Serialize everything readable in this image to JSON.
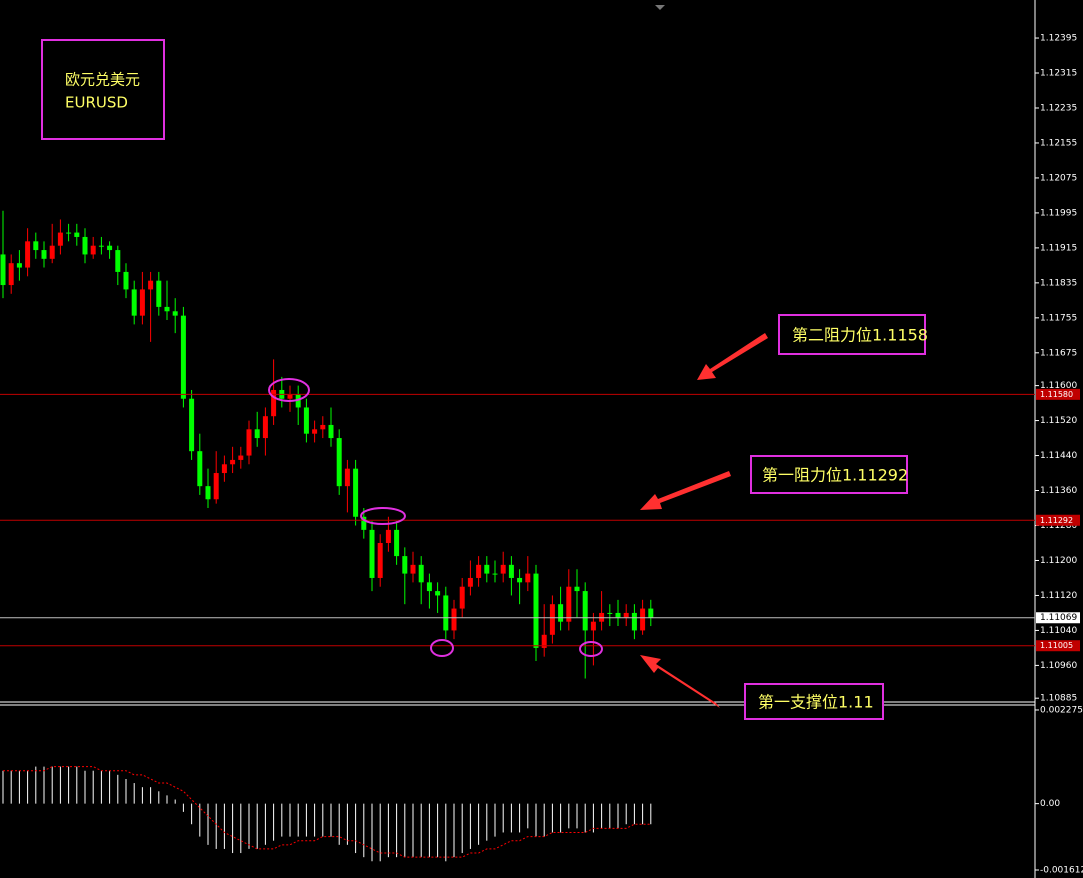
{
  "chart_data": [
    {
      "type": "candlestick",
      "title": "欧元兑美元",
      "subtitle": "EURUSD",
      "annotations": [
        "第二阻力位1.1158",
        "第一阻力位1.11292",
        "第一支撑位1.11"
      ],
      "up_color": "#ff0000",
      "down_color": "#00ff00",
      "open": [
        1.119,
        1.1183,
        1.1188,
        1.1187,
        1.1193,
        1.1191,
        1.1189,
        1.1192,
        1.1195,
        1.1195,
        1.1194,
        1.119,
        1.1192,
        1.1192,
        1.1191,
        1.1186,
        1.1182,
        1.1176,
        1.1182,
        1.1184,
        1.1178,
        1.1177,
        1.1176,
        1.1157,
        1.1145,
        1.1137,
        1.1134,
        1.114,
        1.1142,
        1.1143,
        1.1144,
        1.115,
        1.1148,
        1.1153,
        1.1159,
        1.1157,
        1.1158,
        1.1155,
        1.1149,
        1.115,
        1.1151,
        1.1148,
        1.1137,
        1.1141,
        1.113,
        1.1127,
        1.1116,
        1.1124,
        1.1127,
        1.1121,
        1.1117,
        1.1119,
        1.1115,
        1.1113,
        1.1112,
        1.1104,
        1.1109,
        1.1114,
        1.1116,
        1.1119,
        1.1117,
        1.1117,
        1.1119,
        1.1116,
        1.1115,
        1.1117,
        1.11,
        1.1103,
        1.111,
        1.1106,
        1.1114,
        1.1113,
        1.1104,
        1.1106,
        1.1108,
        1.1108,
        1.1107,
        1.1108,
        1.1104,
        1.1109
      ],
      "high": [
        1.12,
        1.119,
        1.1191,
        1.1196,
        1.1195,
        1.1193,
        1.1197,
        1.1198,
        1.1197,
        1.1197,
        1.1196,
        1.1194,
        1.1194,
        1.1193,
        1.1192,
        1.1188,
        1.1184,
        1.1186,
        1.1186,
        1.1186,
        1.1184,
        1.118,
        1.1178,
        1.1159,
        1.1149,
        1.1141,
        1.1145,
        1.1144,
        1.1146,
        1.1146,
        1.1152,
        1.1154,
        1.1155,
        1.1166,
        1.1162,
        1.116,
        1.116,
        1.1157,
        1.1152,
        1.1153,
        1.1155,
        1.115,
        1.1143,
        1.1143,
        1.1132,
        1.1129,
        1.1126,
        1.113,
        1.1129,
        1.1123,
        1.1122,
        1.1121,
        1.1117,
        1.1115,
        1.1114,
        1.1111,
        1.1116,
        1.112,
        1.1121,
        1.1121,
        1.112,
        1.1122,
        1.1121,
        1.1118,
        1.1121,
        1.1119,
        1.111,
        1.1112,
        1.1114,
        1.1118,
        1.1118,
        1.1115,
        1.1108,
        1.1113,
        1.111,
        1.1111,
        1.111,
        1.111,
        1.1111,
        1.1111
      ],
      "low": [
        1.118,
        1.1181,
        1.1184,
        1.1185,
        1.1189,
        1.1187,
        1.1188,
        1.119,
        1.1193,
        1.1192,
        1.1188,
        1.1189,
        1.119,
        1.1189,
        1.1183,
        1.118,
        1.1174,
        1.1174,
        1.117,
        1.1176,
        1.1175,
        1.1172,
        1.1155,
        1.1143,
        1.1135,
        1.1132,
        1.1133,
        1.1138,
        1.114,
        1.1141,
        1.1142,
        1.1146,
        1.1144,
        1.1151,
        1.1155,
        1.1154,
        1.1151,
        1.1147,
        1.1147,
        1.1148,
        1.1146,
        1.1135,
        1.1131,
        1.1128,
        1.1125,
        1.1113,
        1.1114,
        1.1122,
        1.1119,
        1.111,
        1.1115,
        1.111,
        1.1109,
        1.1108,
        1.1102,
        1.1102,
        1.1107,
        1.1112,
        1.1114,
        1.1115,
        1.1115,
        1.1115,
        1.1112,
        1.111,
        1.1113,
        1.1097,
        1.1098,
        1.1101,
        1.1104,
        1.1104,
        1.1107,
        1.1093,
        1.1096,
        1.1104,
        1.1105,
        1.1105,
        1.1105,
        1.1102,
        1.1103,
        1.1105
      ],
      "close": [
        1.1183,
        1.1188,
        1.1187,
        1.1193,
        1.1191,
        1.1189,
        1.1192,
        1.1195,
        1.1195,
        1.1194,
        1.119,
        1.1192,
        1.1192,
        1.1191,
        1.1186,
        1.1182,
        1.1176,
        1.1182,
        1.1184,
        1.1178,
        1.1177,
        1.1176,
        1.1157,
        1.1145,
        1.1137,
        1.1134,
        1.114,
        1.1142,
        1.1143,
        1.1144,
        1.115,
        1.1148,
        1.1153,
        1.1159,
        1.1157,
        1.1158,
        1.1155,
        1.1149,
        1.115,
        1.1151,
        1.1148,
        1.1137,
        1.1141,
        1.113,
        1.1127,
        1.1116,
        1.1124,
        1.1127,
        1.1121,
        1.1117,
        1.1119,
        1.1115,
        1.1113,
        1.1112,
        1.1104,
        1.1109,
        1.1114,
        1.1116,
        1.1119,
        1.1117,
        1.1117,
        1.1119,
        1.1116,
        1.1115,
        1.1117,
        1.11,
        1.1103,
        1.111,
        1.1106,
        1.1114,
        1.1113,
        1.1104,
        1.1106,
        1.1108,
        1.1108,
        1.1107,
        1.1108,
        1.1104,
        1.1109,
        1.11069
      ],
      "ylim": [
        1.10874,
        1.12482
      ],
      "yticks": [
        1.12395,
        1.12315,
        1.12235,
        1.12155,
        1.12075,
        1.11995,
        1.11915,
        1.11835,
        1.11755,
        1.11675,
        {
          "value": 1.116,
          "label": "1.11600"
        },
        {
          "value": 1.1152,
          "label": "1.11520"
        },
        {
          "value": 1.1144,
          "label": "1.11440"
        },
        {
          "value": 1.1136,
          "label": "1.11360"
        },
        {
          "value": 1.1128,
          "label": "1.11280"
        },
        {
          "value": 1.112,
          "label": "1.11200"
        },
        {
          "value": 1.1112,
          "label": "1.11120"
        },
        {
          "value": 1.1104,
          "label": "1.11040"
        },
        {
          "value": 1.1096,
          "label": "1.10960"
        },
        1.10885
      ],
      "levels": [
        {
          "value": 1.1158,
          "label": "1.11580"
        },
        1.11292,
        {
          "value": 1.11005,
          "label": "1.11005"
        }
      ],
      "level_color": "#c00000",
      "last_price": 1.11069,
      "last_price_color": "#c0c0c0"
    },
    {
      "type": "macd",
      "histogram": {
        "color": "#ffffff",
        "values": [
          0.0008,
          0.0008,
          0.0008,
          0.0008,
          0.0009,
          0.0009,
          0.0009,
          0.0009,
          0.0009,
          0.0009,
          0.0008,
          0.0008,
          0.0008,
          0.0008,
          0.0007,
          0.0006,
          0.0005,
          0.0004,
          0.0004,
          0.0003,
          0.0002,
          0.0001,
          -0.0002,
          -0.0005,
          -0.0008,
          -0.001,
          -0.0011,
          -0.0011,
          -0.0012,
          -0.0012,
          -0.0011,
          -0.0011,
          -0.001,
          -0.0009,
          -0.0008,
          -0.0008,
          -0.0008,
          -0.0008,
          -0.0008,
          -0.0008,
          -0.0008,
          -0.001,
          -0.001,
          -0.0012,
          -0.0013,
          -0.0014,
          -0.0014,
          -0.0013,
          -0.0013,
          -0.0013,
          -0.0013,
          -0.0013,
          -0.0013,
          -0.0013,
          -0.0014,
          -0.0013,
          -0.0012,
          -0.0011,
          -0.001,
          -0.0009,
          -0.0008,
          -0.0007,
          -0.0007,
          -0.0007,
          -0.0006,
          -0.0008,
          -0.0008,
          -0.0007,
          -0.0007,
          -0.0006,
          -0.0006,
          -0.0007,
          -0.0007,
          -0.0006,
          -0.0006,
          -0.0006,
          -0.0005,
          -0.0005,
          -0.0005,
          -0.0005
        ]
      },
      "signal": {
        "color": "#ff0000",
        "values": [
          0.0008,
          0.0008,
          0.0008,
          0.0008,
          0.0008,
          0.0008,
          0.0009,
          0.0009,
          0.0009,
          0.0009,
          0.0009,
          0.0009,
          0.0008,
          0.0008,
          0.0008,
          0.0008,
          0.0007,
          0.0007,
          0.0006,
          0.0005,
          0.0005,
          0.0004,
          0.0003,
          0.0001,
          -0.0001,
          -0.0003,
          -0.0005,
          -0.0007,
          -0.0008,
          -0.0009,
          -0.001,
          -0.0011,
          -0.0011,
          -0.0011,
          -0.001,
          -0.001,
          -0.0009,
          -0.0009,
          -0.0009,
          -0.0008,
          -0.0008,
          -0.0008,
          -0.0009,
          -0.0009,
          -0.001,
          -0.0011,
          -0.0012,
          -0.0012,
          -0.0012,
          -0.0013,
          -0.0013,
          -0.0013,
          -0.0013,
          -0.0013,
          -0.0013,
          -0.0013,
          -0.0013,
          -0.0012,
          -0.0012,
          -0.0011,
          -0.0011,
          -0.001,
          -0.0009,
          -0.0009,
          -0.0008,
          -0.0008,
          -0.0008,
          -0.0007,
          -0.0007,
          -0.0007,
          -0.0007,
          -0.0007,
          -0.0006,
          -0.0006,
          -0.0006,
          -0.0006,
          -0.0006,
          -0.0005,
          -0.0005,
          -0.0005
        ]
      },
      "ylim": [
        -0.001806,
        0.002396
      ],
      "yticks": [
        0.002275,
        {
          "value": 0,
          "label": "0.00"
        },
        -0.001612
      ]
    }
  ]
}
